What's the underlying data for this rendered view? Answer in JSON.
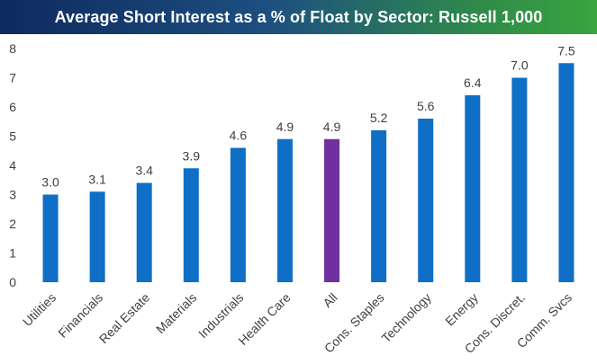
{
  "chart_data": {
    "type": "bar",
    "title": "Average Short Interest as a % of Float by Sector: Russell 1,000",
    "categories": [
      "Utilities",
      "Financials",
      "Real Estate",
      "Materials",
      "Industrials",
      "Health Care",
      "All",
      "Cons. Staples",
      "Technology",
      "Energy",
      "Cons. Discret.",
      "Comm. Svcs"
    ],
    "values": [
      3.0,
      3.1,
      3.4,
      3.9,
      4.6,
      4.9,
      4.9,
      5.2,
      5.6,
      6.4,
      7.0,
      7.5
    ],
    "data_labels": [
      "3.0",
      "3.1",
      "3.4",
      "3.9",
      "4.6",
      "4.9",
      "4.9",
      "5.2",
      "5.6",
      "6.4",
      "7.0",
      "7.5"
    ],
    "ylim": [
      0,
      8
    ],
    "yticks": [
      "0",
      "1",
      "2",
      "3",
      "4",
      "5",
      "6",
      "7",
      "8"
    ],
    "xlabel": "",
    "ylabel": "",
    "grid": false,
    "colors": {
      "default": "#0f6fc6",
      "highlight": "#7030a0"
    },
    "highlight_category": "All"
  }
}
